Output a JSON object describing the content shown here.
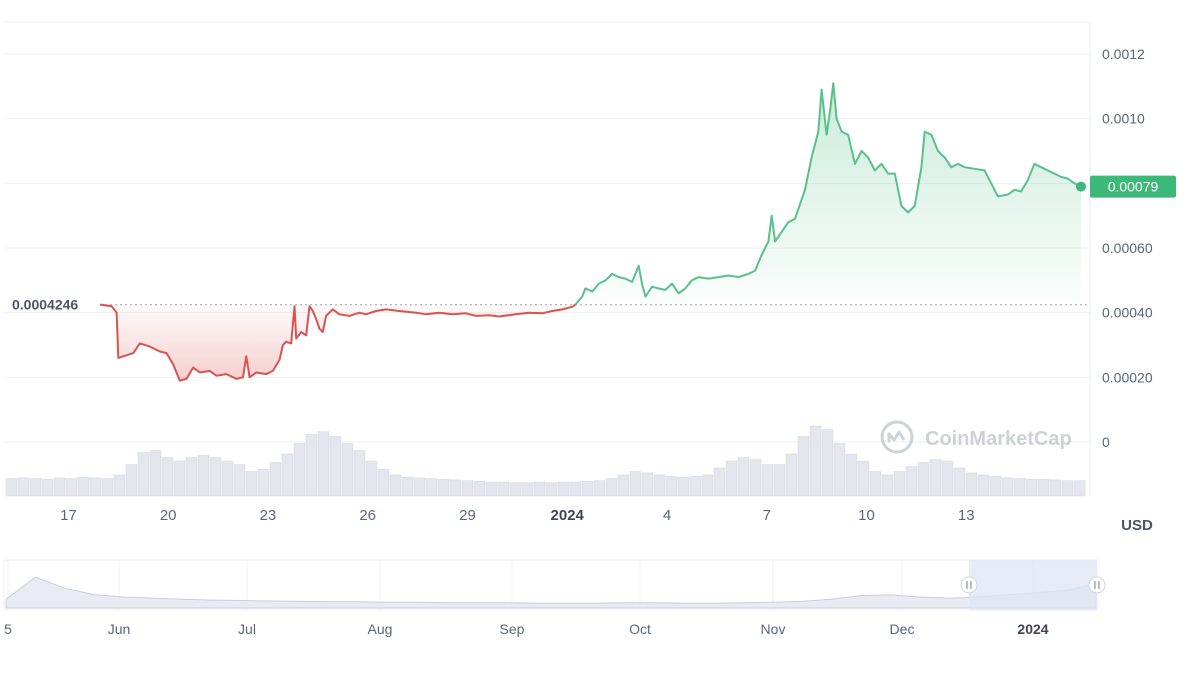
{
  "chart_data": {
    "type": "line",
    "currency_label": "USD",
    "watermark": "CoinMarketCap",
    "reference_price_label": "0.0004246",
    "reference_price": 0.0004246,
    "current_price_label": "0.00079",
    "current_price": 0.00079,
    "ylim": [
      0,
      0.00128
    ],
    "y_ticks": [
      "0.0012",
      "0.0010",
      "0.00080",
      "0.00060",
      "0.00040",
      "0.00020",
      "0"
    ],
    "y_tick_values": [
      0.0012,
      0.001,
      0.0008,
      0.0006,
      0.0004,
      0.0002,
      0
    ],
    "x_ticks": [
      {
        "label": "17",
        "t": -0.95,
        "bold": false
      },
      {
        "label": "20",
        "t": 2.05,
        "bold": false
      },
      {
        "label": "23",
        "t": 5.05,
        "bold": false
      },
      {
        "label": "26",
        "t": 8.05,
        "bold": false
      },
      {
        "label": "29",
        "t": 11.05,
        "bold": false
      },
      {
        "label": "2024",
        "t": 14.05,
        "bold": true
      },
      {
        "label": "4",
        "t": 17.05,
        "bold": false
      },
      {
        "label": "7",
        "t": 20.05,
        "bold": false
      },
      {
        "label": "10",
        "t": 23.05,
        "bold": false
      },
      {
        "label": "13",
        "t": 26.05,
        "bold": false
      }
    ],
    "colors": {
      "down": "#d9534f",
      "up": "#59c08b",
      "price_badge": "#3cb878",
      "grid": "#eef0f4"
    },
    "price_series": [
      {
        "t": 0.0,
        "v": 0.000425
      },
      {
        "t": 0.35,
        "v": 0.00042
      },
      {
        "t": 0.5,
        "v": 0.0004
      },
      {
        "t": 0.55,
        "v": 0.00026
      },
      {
        "t": 0.7,
        "v": 0.000265
      },
      {
        "t": 1.0,
        "v": 0.000275
      },
      {
        "t": 1.2,
        "v": 0.000305
      },
      {
        "t": 1.5,
        "v": 0.000295
      },
      {
        "t": 1.8,
        "v": 0.00028
      },
      {
        "t": 2.0,
        "v": 0.000275
      },
      {
        "t": 2.2,
        "v": 0.00024
      },
      {
        "t": 2.4,
        "v": 0.00019
      },
      {
        "t": 2.6,
        "v": 0.000195
      },
      {
        "t": 2.8,
        "v": 0.00023
      },
      {
        "t": 3.0,
        "v": 0.000215
      },
      {
        "t": 3.3,
        "v": 0.00022
      },
      {
        "t": 3.5,
        "v": 0.000205
      },
      {
        "t": 3.8,
        "v": 0.00021
      },
      {
        "t": 4.1,
        "v": 0.000195
      },
      {
        "t": 4.3,
        "v": 0.0002
      },
      {
        "t": 4.4,
        "v": 0.000265
      },
      {
        "t": 4.5,
        "v": 0.0002
      },
      {
        "t": 4.7,
        "v": 0.000215
      },
      {
        "t": 5.0,
        "v": 0.00021
      },
      {
        "t": 5.2,
        "v": 0.00022
      },
      {
        "t": 5.4,
        "v": 0.000255
      },
      {
        "t": 5.5,
        "v": 0.0003
      },
      {
        "t": 5.6,
        "v": 0.00031
      },
      {
        "t": 5.75,
        "v": 0.000305
      },
      {
        "t": 5.85,
        "v": 0.00042
      },
      {
        "t": 5.9,
        "v": 0.00032
      },
      {
        "t": 6.05,
        "v": 0.00034
      },
      {
        "t": 6.2,
        "v": 0.00033
      },
      {
        "t": 6.3,
        "v": 0.00042
      },
      {
        "t": 6.4,
        "v": 0.000405
      },
      {
        "t": 6.5,
        "v": 0.00038
      },
      {
        "t": 6.6,
        "v": 0.00035
      },
      {
        "t": 6.7,
        "v": 0.00034
      },
      {
        "t": 6.8,
        "v": 0.00039
      },
      {
        "t": 7.0,
        "v": 0.00041
      },
      {
        "t": 7.2,
        "v": 0.000395
      },
      {
        "t": 7.5,
        "v": 0.00039
      },
      {
        "t": 7.8,
        "v": 0.0004
      },
      {
        "t": 8.0,
        "v": 0.000395
      },
      {
        "t": 8.3,
        "v": 0.000405
      },
      {
        "t": 8.6,
        "v": 0.00041
      },
      {
        "t": 9.0,
        "v": 0.000405
      },
      {
        "t": 9.5,
        "v": 0.0004
      },
      {
        "t": 9.8,
        "v": 0.000395
      },
      {
        "t": 10.2,
        "v": 0.0004
      },
      {
        "t": 10.6,
        "v": 0.000395
      },
      {
        "t": 11.0,
        "v": 0.000398
      },
      {
        "t": 11.3,
        "v": 0.00039
      },
      {
        "t": 11.7,
        "v": 0.000392
      },
      {
        "t": 12.0,
        "v": 0.000388
      },
      {
        "t": 12.5,
        "v": 0.000395
      },
      {
        "t": 12.9,
        "v": 0.0004
      },
      {
        "t": 13.3,
        "v": 0.000398
      },
      {
        "t": 13.6,
        "v": 0.000405
      },
      {
        "t": 13.9,
        "v": 0.00041
      },
      {
        "t": 14.2,
        "v": 0.000418
      },
      {
        "t": 14.3,
        "v": 0.000425
      },
      {
        "t": 14.5,
        "v": 0.00045
      },
      {
        "t": 14.6,
        "v": 0.000475
      },
      {
        "t": 14.8,
        "v": 0.000465
      },
      {
        "t": 15.0,
        "v": 0.00049
      },
      {
        "t": 15.2,
        "v": 0.0005
      },
      {
        "t": 15.4,
        "v": 0.00052
      },
      {
        "t": 15.6,
        "v": 0.00051
      },
      {
        "t": 15.8,
        "v": 0.000505
      },
      {
        "t": 16.0,
        "v": 0.000495
      },
      {
        "t": 16.2,
        "v": 0.000545
      },
      {
        "t": 16.3,
        "v": 0.00049
      },
      {
        "t": 16.4,
        "v": 0.00045
      },
      {
        "t": 16.6,
        "v": 0.00048
      },
      {
        "t": 16.8,
        "v": 0.000475
      },
      {
        "t": 17.0,
        "v": 0.00047
      },
      {
        "t": 17.2,
        "v": 0.00049
      },
      {
        "t": 17.4,
        "v": 0.00046
      },
      {
        "t": 17.6,
        "v": 0.000475
      },
      {
        "t": 17.8,
        "v": 0.0005
      },
      {
        "t": 18.0,
        "v": 0.00051
      },
      {
        "t": 18.3,
        "v": 0.000505
      },
      {
        "t": 18.6,
        "v": 0.00051
      },
      {
        "t": 18.9,
        "v": 0.000515
      },
      {
        "t": 19.2,
        "v": 0.00051
      },
      {
        "t": 19.5,
        "v": 0.00052
      },
      {
        "t": 19.7,
        "v": 0.00053
      },
      {
        "t": 19.9,
        "v": 0.00058
      },
      {
        "t": 20.1,
        "v": 0.00062
      },
      {
        "t": 20.2,
        "v": 0.0007
      },
      {
        "t": 20.3,
        "v": 0.00062
      },
      {
        "t": 20.5,
        "v": 0.00065
      },
      {
        "t": 20.7,
        "v": 0.00068
      },
      {
        "t": 20.9,
        "v": 0.00069
      },
      {
        "t": 21.0,
        "v": 0.00072
      },
      {
        "t": 21.2,
        "v": 0.00078
      },
      {
        "t": 21.4,
        "v": 0.00088
      },
      {
        "t": 21.6,
        "v": 0.00096
      },
      {
        "t": 21.7,
        "v": 0.00109
      },
      {
        "t": 21.85,
        "v": 0.00095
      },
      {
        "t": 21.95,
        "v": 0.00102
      },
      {
        "t": 22.05,
        "v": 0.00111
      },
      {
        "t": 22.15,
        "v": 0.001
      },
      {
        "t": 22.3,
        "v": 0.00096
      },
      {
        "t": 22.5,
        "v": 0.00095
      },
      {
        "t": 22.7,
        "v": 0.00086
      },
      {
        "t": 22.9,
        "v": 0.0009
      },
      {
        "t": 23.1,
        "v": 0.00088
      },
      {
        "t": 23.3,
        "v": 0.00084
      },
      {
        "t": 23.5,
        "v": 0.00086
      },
      {
        "t": 23.7,
        "v": 0.00083
      },
      {
        "t": 23.9,
        "v": 0.00083
      },
      {
        "t": 24.1,
        "v": 0.00073
      },
      {
        "t": 24.3,
        "v": 0.00071
      },
      {
        "t": 24.5,
        "v": 0.00073
      },
      {
        "t": 24.7,
        "v": 0.00085
      },
      {
        "t": 24.8,
        "v": 0.00096
      },
      {
        "t": 25.0,
        "v": 0.00095
      },
      {
        "t": 25.2,
        "v": 0.0009
      },
      {
        "t": 25.4,
        "v": 0.00088
      },
      {
        "t": 25.6,
        "v": 0.00085
      },
      {
        "t": 25.8,
        "v": 0.00086
      },
      {
        "t": 26.0,
        "v": 0.00085
      },
      {
        "t": 26.3,
        "v": 0.000845
      },
      {
        "t": 26.6,
        "v": 0.00084
      },
      {
        "t": 26.8,
        "v": 0.0008
      },
      {
        "t": 27.0,
        "v": 0.00076
      },
      {
        "t": 27.3,
        "v": 0.000765
      },
      {
        "t": 27.5,
        "v": 0.00078
      },
      {
        "t": 27.7,
        "v": 0.000775
      },
      {
        "t": 27.9,
        "v": 0.00081
      },
      {
        "t": 28.1,
        "v": 0.00086
      },
      {
        "t": 28.3,
        "v": 0.00085
      },
      {
        "t": 28.5,
        "v": 0.00084
      },
      {
        "t": 28.7,
        "v": 0.00083
      },
      {
        "t": 28.9,
        "v": 0.00082
      },
      {
        "t": 29.1,
        "v": 0.000815
      },
      {
        "t": 29.3,
        "v": 0.0008
      },
      {
        "t": 29.5,
        "v": 0.00079
      }
    ],
    "volume_series": [
      0.25,
      0.26,
      0.25,
      0.24,
      0.26,
      0.25,
      0.27,
      0.26,
      0.25,
      0.3,
      0.45,
      0.62,
      0.65,
      0.55,
      0.5,
      0.55,
      0.58,
      0.55,
      0.5,
      0.45,
      0.35,
      0.38,
      0.48,
      0.6,
      0.75,
      0.88,
      0.92,
      0.85,
      0.75,
      0.65,
      0.5,
      0.38,
      0.3,
      0.27,
      0.26,
      0.25,
      0.24,
      0.23,
      0.22,
      0.21,
      0.2,
      0.2,
      0.19,
      0.19,
      0.2,
      0.19,
      0.2,
      0.2,
      0.21,
      0.22,
      0.25,
      0.3,
      0.35,
      0.33,
      0.3,
      0.28,
      0.27,
      0.28,
      0.3,
      0.4,
      0.5,
      0.55,
      0.52,
      0.45,
      0.45,
      0.6,
      0.85,
      1.0,
      0.95,
      0.75,
      0.6,
      0.5,
      0.35,
      0.3,
      0.35,
      0.42,
      0.48,
      0.52,
      0.5,
      0.4,
      0.33,
      0.3,
      0.28,
      0.26,
      0.25,
      0.24,
      0.24,
      0.23,
      0.22,
      0.22
    ],
    "navigator": {
      "x_ticks": [
        {
          "label": "5",
          "bold": false
        },
        {
          "label": "Jun",
          "bold": false
        },
        {
          "label": "Jul",
          "bold": false
        },
        {
          "label": "Aug",
          "bold": false
        },
        {
          "label": "Sep",
          "bold": false
        },
        {
          "label": "Oct",
          "bold": false
        },
        {
          "label": "Nov",
          "bold": false
        },
        {
          "label": "Dec",
          "bold": false
        },
        {
          "label": "2024",
          "bold": true
        }
      ],
      "series": [
        0.2,
        0.7,
        0.45,
        0.3,
        0.25,
        0.22,
        0.2,
        0.18,
        0.17,
        0.16,
        0.15,
        0.14,
        0.14,
        0.13,
        0.13,
        0.12,
        0.12,
        0.12,
        0.11,
        0.11,
        0.11,
        0.12,
        0.12,
        0.11,
        0.11,
        0.12,
        0.13,
        0.15,
        0.2,
        0.28,
        0.3,
        0.25,
        0.22,
        0.25,
        0.3,
        0.35,
        0.4,
        0.55
      ]
    }
  }
}
